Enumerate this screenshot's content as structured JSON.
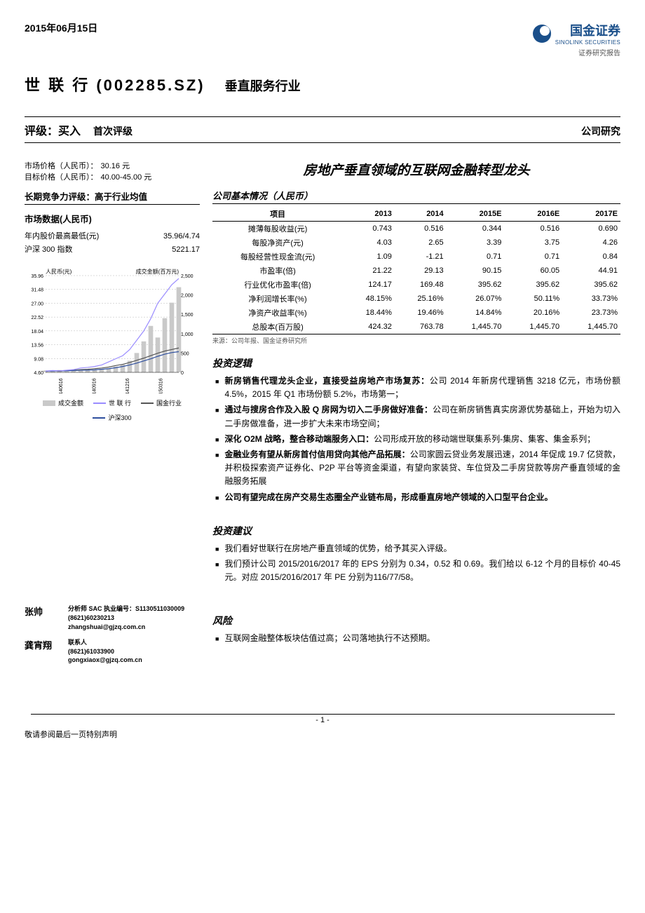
{
  "header": {
    "date": "2015年06月15日",
    "logo_cn": "国金证券",
    "logo_en": "SINOLINK SECURITIES",
    "logo_sub": "证券研究报告",
    "company": "世 联 行 (002285.SZ)",
    "industry": "垂直服务行业"
  },
  "rating": {
    "label": "评级：买入",
    "sub": "首次评级",
    "right": "公司研究"
  },
  "left": {
    "price_label": "市场价格（人民币）：",
    "price_value": "30.16 元",
    "target_label": "目标价格（人民币）：",
    "target_value": "40.00-45.00 元",
    "comp_hd": "长期竞争力评级：高于行业均值",
    "market_hd": "市场数据(人民币)",
    "hi_lo_label": "年内股价最高最低(元)",
    "hi_lo_value": "35.96/4.74",
    "index_label": "沪深 300 指数",
    "index_value": "5221.17"
  },
  "chart": {
    "y_left_label": "人民币(元)",
    "y_right_label": "成交金额(百万元)",
    "y_left_ticks": [
      "35.96",
      "31.48",
      "27.00",
      "22.52",
      "18.04",
      "13.56",
      "9.08",
      "4.60"
    ],
    "y_right_ticks": [
      "2,500",
      "2,000",
      "1,500",
      "1,000",
      "500",
      "0"
    ],
    "x_ticks": [
      "140616",
      "140916",
      "141216",
      "150316"
    ],
    "series": {
      "volume": {
        "label": "成交金额",
        "color": "#c9c9c9",
        "type": "bar"
      },
      "company": {
        "label": "世 联 行",
        "color": "#9a8cff",
        "type": "line"
      },
      "industry": {
        "label": "国金行业",
        "color": "#555555",
        "type": "line"
      },
      "csi300": {
        "label": "沪深300",
        "color": "#2e4f9e",
        "type": "line"
      }
    },
    "points": {
      "volume": [
        50,
        40,
        60,
        30,
        70,
        50,
        80,
        60,
        90,
        100,
        150,
        200,
        300,
        500,
        800,
        1200,
        900,
        1400,
        1800,
        2200
      ],
      "company": [
        5,
        5.2,
        5.1,
        5.3,
        5.5,
        6,
        6.2,
        6.5,
        7,
        8,
        9,
        10,
        12,
        15,
        18,
        22,
        27,
        30,
        33,
        35
      ],
      "industry": [
        5,
        5.1,
        5.0,
        5.2,
        5.3,
        5.5,
        5.6,
        5.8,
        6,
        6.3,
        6.8,
        7.2,
        7.8,
        8.5,
        9.2,
        10,
        10.8,
        11.5,
        12,
        12.5
      ],
      "csi300": [
        5,
        5.05,
        5.1,
        5.1,
        5.2,
        5.3,
        5.3,
        5.4,
        5.6,
        5.8,
        6.1,
        6.5,
        7,
        7.6,
        8.3,
        9,
        9.8,
        10.5,
        11,
        11.3
      ]
    },
    "y_left_domain": [
      4.6,
      35.96
    ],
    "y_right_domain": [
      0,
      2500
    ],
    "bg_color": "#ffffff",
    "grid_color": "#888888"
  },
  "main": {
    "title": "房地产垂直领域的互联网金融转型龙头",
    "table_hd": "公司基本情况（人民币）",
    "table_note": "来源：公司年报、国金证券研究所"
  },
  "fin_table": {
    "header": [
      "项目",
      "2013",
      "2014",
      "2015E",
      "2016E",
      "2017E"
    ],
    "rows": [
      [
        "摊薄每股收益(元)",
        "0.743",
        "0.516",
        "0.344",
        "0.516",
        "0.690"
      ],
      [
        "每股净资产(元)",
        "4.03",
        "2.65",
        "3.39",
        "3.75",
        "4.26"
      ],
      [
        "每股经营性现金流(元)",
        "1.09",
        "-1.21",
        "0.71",
        "0.71",
        "0.84"
      ],
      [
        "市盈率(倍)",
        "21.22",
        "29.13",
        "90.15",
        "60.05",
        "44.91"
      ],
      [
        "行业优化市盈率(倍)",
        "124.17",
        "169.48",
        "395.62",
        "395.62",
        "395.62"
      ],
      [
        "净利润增长率(%)",
        "48.15%",
        "25.16%",
        "26.07%",
        "50.11%",
        "33.73%"
      ],
      [
        "净资产收益率(%)",
        "18.44%",
        "19.46%",
        "14.84%",
        "20.16%",
        "23.73%"
      ],
      [
        "总股本(百万股)",
        "424.32",
        "763.78",
        "1,445.70",
        "1,445.70",
        "1,445.70"
      ]
    ]
  },
  "sections": {
    "logic_hd": "投资逻辑",
    "logic": [
      {
        "b": "新房销售代理龙头企业，直接受益房地产市场复苏：",
        "t": "公司 2014 年新房代理销售 3218 亿元，市场份额 4.5%，2015 年 Q1 市场份额 5.2%，市场第一；"
      },
      {
        "b": "通过与搜房合作及入股 Q 房网为切入二手房做好准备：",
        "t": "公司在新房销售真实房源优势基础上，开始为切入二手房做准备，进一步扩大未来市场空间；"
      },
      {
        "b": "深化 O2M 战略，整合移动端服务入口：",
        "t": "公司形成开放的移动端世联集系列-集房、集客、集金系列；"
      },
      {
        "b": "金融业务有望从新房首付信用贷向其他产品拓展：",
        "t": "公司家圆云贷业务发展迅速，2014 年促成 19.7 亿贷款，并积极探索资产证券化、P2P 平台等资金渠道，有望向家装贷、车位贷及二手房贷款等房产垂直领域的金融服务拓展"
      },
      {
        "b": "公司有望完成在房产交易生态圈全产业链布局，形成垂直房地产领域的入口型平台企业。",
        "t": ""
      }
    ],
    "advice_hd": "投资建议",
    "advice": [
      "我们看好世联行在房地产垂直领域的优势，给予其买入评级。",
      "我们预计公司 2015/2016/2017 年的 EPS 分别为 0.34，0.52 和 0.69。我们给以 6-12 个月的目标价 40-45 元。对应 2015/2016/2017 年 PE 分别为116/77/58。"
    ],
    "risk_hd": "风险",
    "risk": [
      "互联网金融整体板块估值过高；公司落地执行不达预期。"
    ]
  },
  "analysts": [
    {
      "name": "张帅",
      "line1": "分析师 SAC 执业编号：S1130511030009",
      "line2": "(8621)60230213",
      "line3": "zhangshuai@gjzq.com.cn"
    },
    {
      "name": "龚宵翔",
      "line1": "联系人",
      "line2": "(8621)61033900",
      "line3": "gongxiaox@gjzq.com.cn"
    }
  ],
  "footer": {
    "page": "- 1 -",
    "note": "敬请参阅最后一页特别声明"
  }
}
